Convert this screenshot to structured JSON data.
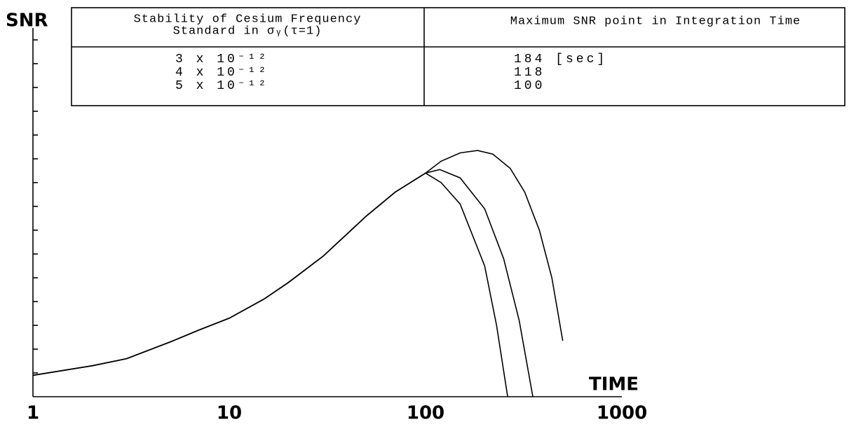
{
  "chart_data": {
    "type": "line",
    "y_label": "SNR",
    "x_label": "TIME",
    "x_scale": "log",
    "xlim": [
      1,
      1000
    ],
    "xticks": [
      1,
      10,
      100,
      1000
    ],
    "ylim": [
      0,
      15.5
    ],
    "yticks": [
      1,
      2,
      3,
      4,
      5,
      6,
      7,
      8,
      9,
      10,
      11,
      12,
      13,
      14,
      15
    ],
    "table": {
      "headers": [
        [
          "Stability of Cesium Frequency",
          "Standard in σᵧ(τ=1)"
        ],
        "Maximum SNR point in Integration Time"
      ],
      "max_points": [
        "184 [sec]",
        "118",
        "100"
      ]
    },
    "series": [
      {
        "name": "3 x 10⁻¹²",
        "color": "#000000",
        "x": [
          1,
          2,
          3,
          5,
          7,
          10,
          15,
          20,
          30,
          50,
          70,
          100,
          120,
          150,
          184,
          220,
          270,
          320,
          380,
          440,
          500
        ],
        "values": [
          0.9,
          1.3,
          1.6,
          2.3,
          2.8,
          3.3,
          4.1,
          4.8,
          5.9,
          7.6,
          8.6,
          9.4,
          9.9,
          10.25,
          10.35,
          10.2,
          9.6,
          8.6,
          7.0,
          5.0,
          2.35
        ]
      },
      {
        "name": "4 x 10⁻¹²",
        "color": "#000000",
        "x": [
          1,
          2,
          3,
          5,
          7,
          10,
          15,
          20,
          30,
          50,
          70,
          100,
          118,
          150,
          200,
          250,
          300,
          352
        ],
        "values": [
          0.9,
          1.3,
          1.6,
          2.3,
          2.8,
          3.3,
          4.1,
          4.8,
          5.9,
          7.6,
          8.6,
          9.4,
          9.55,
          9.2,
          7.9,
          5.8,
          3.2,
          0
        ]
      },
      {
        "name": "5 x 10⁻¹²",
        "color": "#000000",
        "x": [
          1,
          2,
          3,
          5,
          7,
          10,
          15,
          20,
          30,
          50,
          70,
          100,
          120,
          150,
          200,
          230,
          262
        ],
        "values": [
          0.9,
          1.3,
          1.6,
          2.3,
          2.8,
          3.3,
          4.1,
          4.8,
          5.9,
          7.6,
          8.6,
          9.4,
          9.0,
          8.1,
          5.5,
          3.0,
          0
        ]
      }
    ]
  }
}
